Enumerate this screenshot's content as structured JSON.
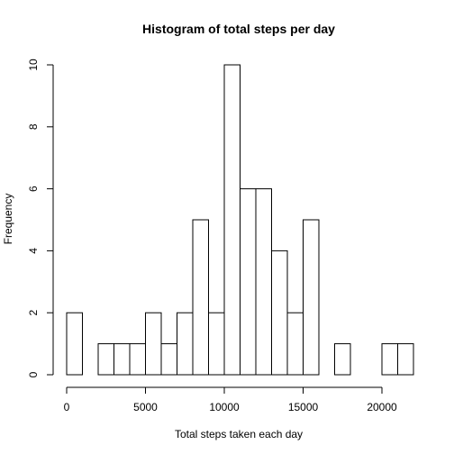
{
  "chart_data": {
    "type": "bar",
    "title": "Histogram of total steps per day",
    "xlabel": "Total steps taken each day",
    "ylabel": "Frequency",
    "bin_width": 1000,
    "bins": [
      {
        "start": 0,
        "end": 1000,
        "count": 2
      },
      {
        "start": 1000,
        "end": 2000,
        "count": 0
      },
      {
        "start": 2000,
        "end": 3000,
        "count": 1
      },
      {
        "start": 3000,
        "end": 4000,
        "count": 1
      },
      {
        "start": 4000,
        "end": 5000,
        "count": 1
      },
      {
        "start": 5000,
        "end": 6000,
        "count": 2
      },
      {
        "start": 6000,
        "end": 7000,
        "count": 1
      },
      {
        "start": 7000,
        "end": 8000,
        "count": 2
      },
      {
        "start": 8000,
        "end": 9000,
        "count": 5
      },
      {
        "start": 9000,
        "end": 10000,
        "count": 2
      },
      {
        "start": 10000,
        "end": 11000,
        "count": 10
      },
      {
        "start": 11000,
        "end": 12000,
        "count": 6
      },
      {
        "start": 12000,
        "end": 13000,
        "count": 6
      },
      {
        "start": 13000,
        "end": 14000,
        "count": 4
      },
      {
        "start": 14000,
        "end": 15000,
        "count": 2
      },
      {
        "start": 15000,
        "end": 16000,
        "count": 5
      },
      {
        "start": 16000,
        "end": 17000,
        "count": 0
      },
      {
        "start": 17000,
        "end": 18000,
        "count": 1
      },
      {
        "start": 18000,
        "end": 19000,
        "count": 0
      },
      {
        "start": 19000,
        "end": 20000,
        "count": 0
      },
      {
        "start": 20000,
        "end": 21000,
        "count": 1
      },
      {
        "start": 21000,
        "end": 22000,
        "count": 1
      }
    ],
    "x_ticks": [
      {
        "value": 0,
        "label": "0"
      },
      {
        "value": 5000,
        "label": "5000"
      },
      {
        "value": 10000,
        "label": "10000"
      },
      {
        "value": 15000,
        "label": "15000"
      },
      {
        "value": 20000,
        "label": "20000"
      }
    ],
    "y_ticks": [
      {
        "value": 0,
        "label": "0"
      },
      {
        "value": 2,
        "label": "2"
      },
      {
        "value": 4,
        "label": "4"
      },
      {
        "value": 6,
        "label": "6"
      },
      {
        "value": 8,
        "label": "8"
      },
      {
        "value": 10,
        "label": "10"
      }
    ],
    "xlim": [
      0,
      22000
    ],
    "ylim": [
      0,
      10
    ],
    "grid": false,
    "bar_fill": "#ffffff",
    "bar_stroke": "#000000"
  }
}
